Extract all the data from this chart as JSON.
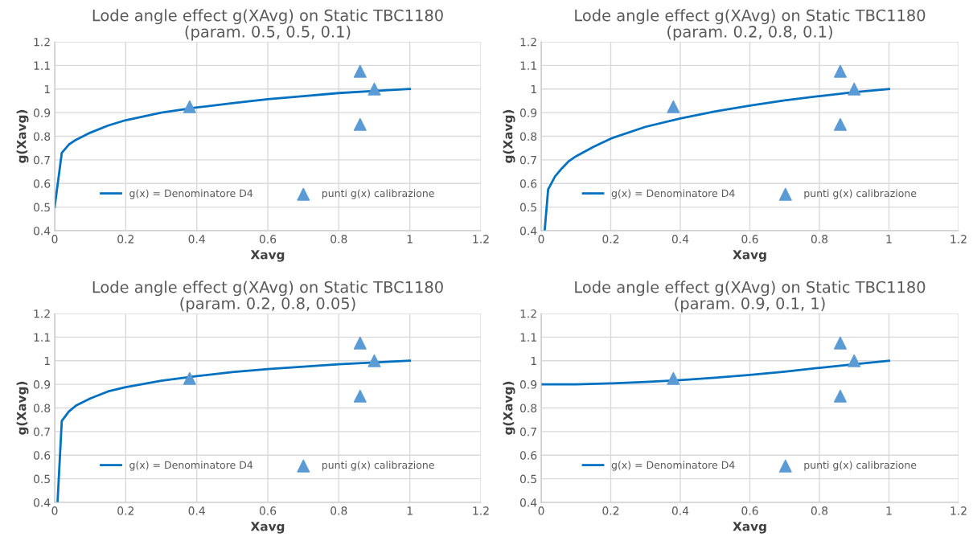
{
  "chart_data": [
    {
      "type": "line",
      "title": "Lode angle effect g(XAvg) on Static TBC1180\n(param. 0.5, 0.5, 0.1)",
      "xlabel": "Xavg",
      "ylabel": "g(Xavg)",
      "xlim": [
        0,
        1.2
      ],
      "xticks": [
        0,
        0.2,
        0.4,
        0.6,
        0.8,
        1,
        1.2
      ],
      "ylim": [
        0.4,
        1.2
      ],
      "yticks": [
        0.4,
        0.5,
        0.6,
        0.7,
        0.8,
        0.9,
        1,
        1.1,
        1.2
      ],
      "grid": true,
      "legend": "bottom",
      "series": [
        {
          "name": "g(x) = Denominatore D4",
          "color": "#0070c0",
          "marker": "none",
          "x": [
            0,
            0.02,
            0.04,
            0.06,
            0.1,
            0.15,
            0.2,
            0.3,
            0.4,
            0.5,
            0.6,
            0.7,
            0.8,
            0.9,
            1
          ],
          "values": [
            0.5,
            0.73,
            0.765,
            0.785,
            0.815,
            0.845,
            0.868,
            0.9,
            0.922,
            0.94,
            0.957,
            0.97,
            0.983,
            0.992,
            1
          ]
        },
        {
          "name": "punti g(x) calibrazione",
          "type": "scatter",
          "color": "#5b9bd5",
          "marker": "triangle",
          "x": [
            0.38,
            0.86,
            0.9,
            0.86
          ],
          "values": [
            0.925,
            1.075,
            1.0,
            0.85
          ]
        }
      ]
    },
    {
      "type": "line",
      "title": "Lode angle effect g(XAvg) on Static TBC1180\n(param. 0.2, 0.8, 0.1)",
      "xlabel": "Xavg",
      "ylabel": "g(Xavg)",
      "xlim": [
        0,
        1.2
      ],
      "xticks": [
        0,
        0.2,
        0.4,
        0.6,
        0.8,
        1,
        1.2
      ],
      "ylim": [
        0.4,
        1.2
      ],
      "yticks": [
        0.4,
        0.5,
        0.6,
        0.7,
        0.8,
        0.9,
        1,
        1.1,
        1.2
      ],
      "grid": true,
      "legend": "bottom",
      "series": [
        {
          "name": "g(x) = Denominatore D4",
          "color": "#0070c0",
          "marker": "none",
          "x": [
            0.01,
            0.02,
            0.04,
            0.06,
            0.08,
            0.1,
            0.15,
            0.2,
            0.3,
            0.4,
            0.5,
            0.6,
            0.7,
            0.8,
            0.9,
            1
          ],
          "values": [
            0.4,
            0.575,
            0.63,
            0.665,
            0.695,
            0.715,
            0.755,
            0.79,
            0.84,
            0.875,
            0.905,
            0.93,
            0.952,
            0.97,
            0.987,
            1
          ]
        },
        {
          "name": "punti g(x) calibrazione",
          "type": "scatter",
          "color": "#5b9bd5",
          "marker": "triangle",
          "x": [
            0.38,
            0.86,
            0.9,
            0.86
          ],
          "values": [
            0.925,
            1.075,
            1.0,
            0.85
          ]
        }
      ]
    },
    {
      "type": "line",
      "title": "Lode angle effect g(XAvg) on Static TBC1180\n(param. 0.2, 0.8, 0.05)",
      "xlabel": "Xavg",
      "ylabel": "g(Xavg)",
      "xlim": [
        0,
        1.2
      ],
      "xticks": [
        0,
        0.2,
        0.4,
        0.6,
        0.8,
        1,
        1.2
      ],
      "ylim": [
        0.4,
        1.2
      ],
      "yticks": [
        0.4,
        0.5,
        0.6,
        0.7,
        0.8,
        0.9,
        1,
        1.1,
        1.2
      ],
      "grid": true,
      "legend": "bottom",
      "series": [
        {
          "name": "g(x) = Denominatore D4",
          "color": "#0070c0",
          "marker": "none",
          "x": [
            0.008,
            0.02,
            0.04,
            0.06,
            0.1,
            0.15,
            0.2,
            0.3,
            0.4,
            0.5,
            0.6,
            0.7,
            0.8,
            0.9,
            1
          ],
          "values": [
            0.4,
            0.745,
            0.785,
            0.81,
            0.84,
            0.87,
            0.888,
            0.915,
            0.935,
            0.952,
            0.965,
            0.975,
            0.985,
            0.993,
            1
          ]
        },
        {
          "name": "punti g(x) calibrazione",
          "type": "scatter",
          "color": "#5b9bd5",
          "marker": "triangle",
          "x": [
            0.38,
            0.86,
            0.9,
            0.86
          ],
          "values": [
            0.925,
            1.075,
            1.0,
            0.85
          ]
        }
      ]
    },
    {
      "type": "line",
      "title": "Lode angle effect g(XAvg) on Static TBC1180\n(param. 0.9, 0.1, 1)",
      "xlabel": "Xavg",
      "ylabel": "g(Xavg)",
      "xlim": [
        0,
        1.2
      ],
      "xticks": [
        0,
        0.2,
        0.4,
        0.6,
        0.8,
        1,
        1.2
      ],
      "ylim": [
        0.4,
        1.2
      ],
      "yticks": [
        0.4,
        0.5,
        0.6,
        0.7,
        0.8,
        0.9,
        1,
        1.1,
        1.2
      ],
      "grid": true,
      "legend": "bottom",
      "series": [
        {
          "name": "g(x) = Denominatore D4",
          "color": "#0070c0",
          "marker": "none",
          "x": [
            0,
            0.1,
            0.2,
            0.3,
            0.4,
            0.5,
            0.6,
            0.7,
            0.8,
            0.9,
            1
          ],
          "values": [
            0.9,
            0.9,
            0.904,
            0.91,
            0.918,
            0.928,
            0.94,
            0.954,
            0.97,
            0.985,
            1
          ]
        },
        {
          "name": "punti g(x) calibrazione",
          "type": "scatter",
          "color": "#5b9bd5",
          "marker": "triangle",
          "x": [
            0.38,
            0.86,
            0.9,
            0.86
          ],
          "values": [
            0.925,
            1.075,
            1.0,
            0.85
          ]
        }
      ]
    }
  ]
}
